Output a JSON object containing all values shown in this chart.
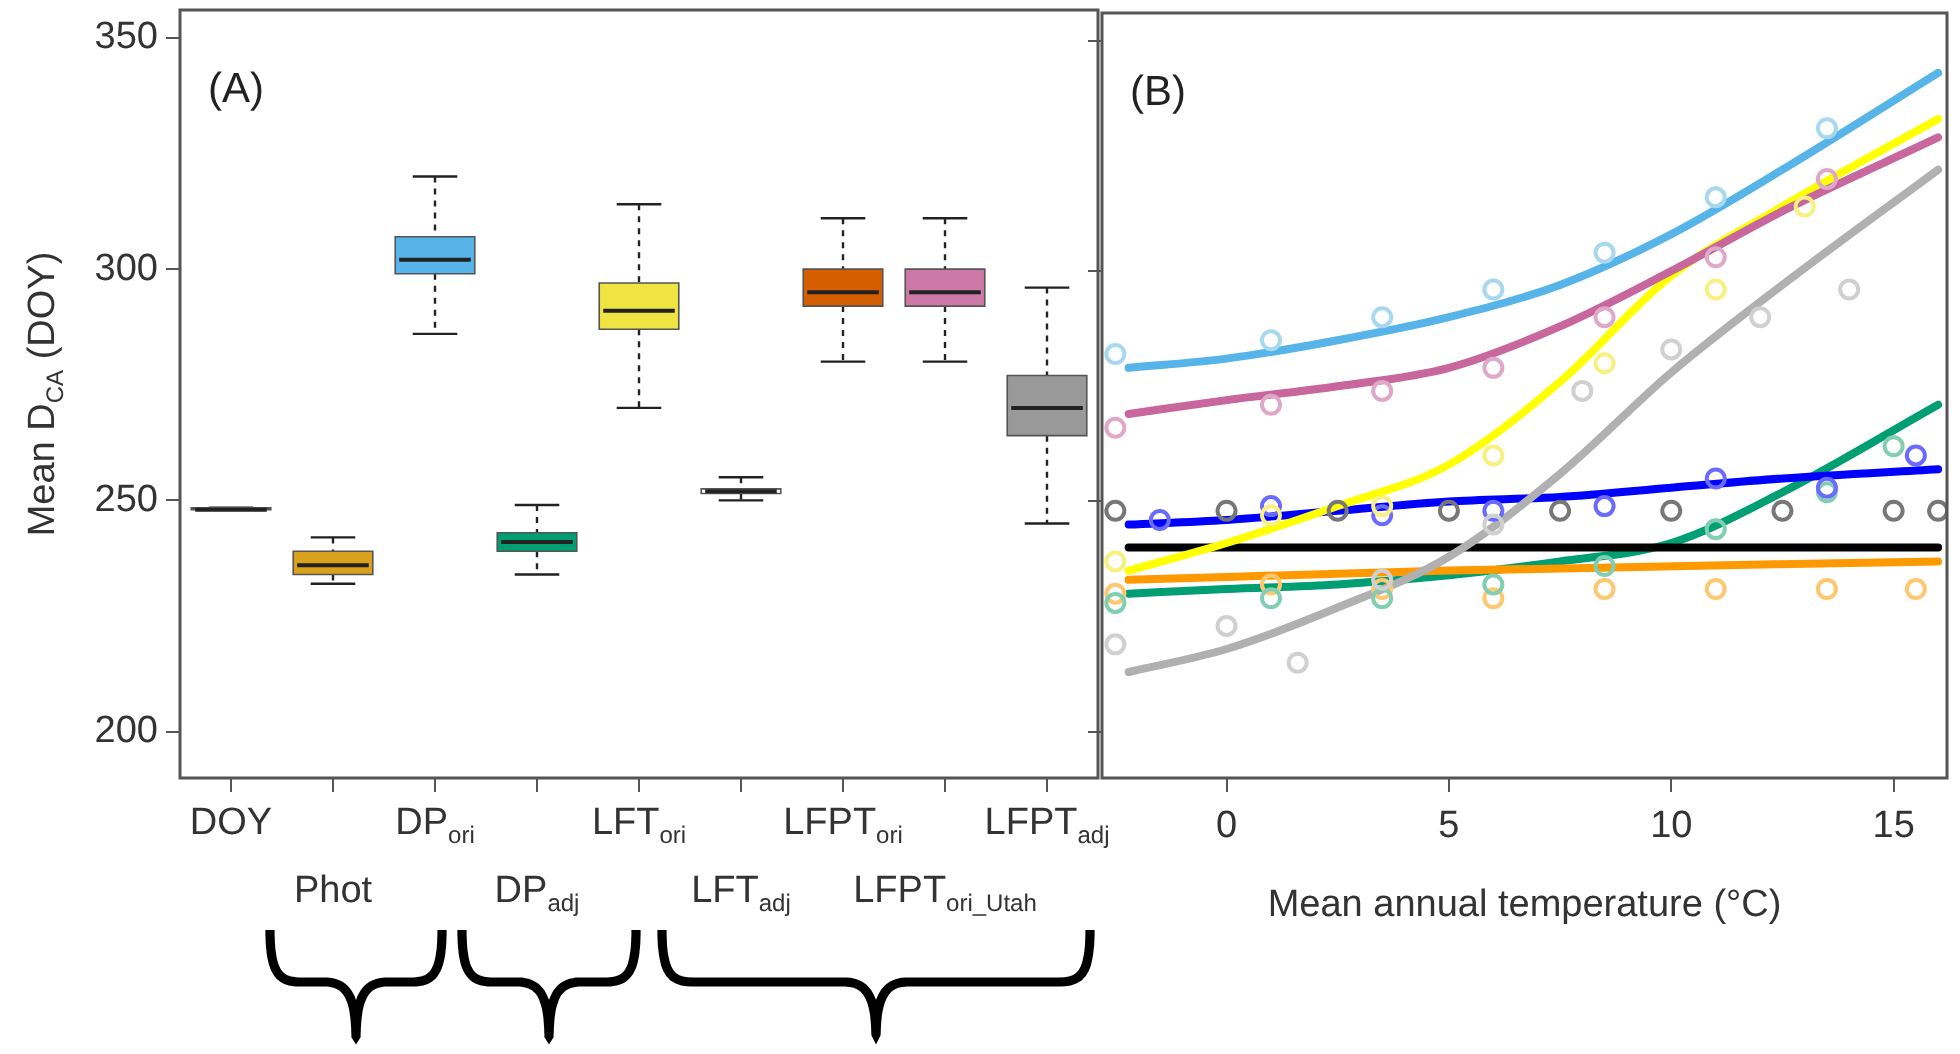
{
  "chart_data": [
    {
      "type": "box",
      "ylabel": "Mean D$_{CA}$ (DOY)",
      "annotations": [
        "(A)"
      ],
      "categories": [
        "DOY",
        "Phot",
        "DP$_{ori}$",
        "DP$_{adj}$",
        "LFT$_{ori}$",
        "LFT$_{adj}$",
        "LFPT$_{ori}$",
        "LFPT$_{ori_Utah}$",
        "LFPT$_{adj}$"
      ],
      "colors": [
        "#444444",
        "#d9a21c",
        "#56b4e9",
        "#009e73",
        "#f0e442",
        "#ffffff",
        "#d55e00",
        "#cc79a7",
        "#999999"
      ],
      "boxes": [
        {
          "low": 248,
          "q1": 248,
          "median": 248,
          "q3": 248.4,
          "high": 248.4
        },
        {
          "low": 232,
          "q1": 234,
          "median": 236,
          "q3": 239,
          "high": 242
        },
        {
          "low": 286,
          "q1": 299,
          "median": 302,
          "q3": 307,
          "high": 320
        },
        {
          "low": 234,
          "q1": 239,
          "median": 241,
          "q3": 243,
          "high": 249
        },
        {
          "low": 270,
          "q1": 287,
          "median": 291,
          "q3": 297,
          "high": 314
        },
        {
          "low": 250,
          "q1": 251.5,
          "median": 252,
          "q3": 252.5,
          "high": 255
        },
        {
          "low": 280,
          "q1": 292,
          "median": 295,
          "q3": 300,
          "high": 311
        },
        {
          "low": 280,
          "q1": 292,
          "median": 295,
          "q3": 300,
          "high": 311
        },
        {
          "low": 245,
          "q1": 264,
          "median": 270,
          "q3": 277,
          "high": 296
        }
      ],
      "ylim": [
        190,
        356
      ],
      "yticks": [
        200,
        250,
        300,
        350
      ],
      "grid": false,
      "legend": false
    },
    {
      "type": "scatter",
      "xlabel": "Mean annual temperature (°C)",
      "annotations": [
        "(B)"
      ],
      "marker": "circle",
      "xlim": [
        -2.8,
        16.2
      ],
      "xticks": [
        0,
        5,
        10,
        15
      ],
      "ylim": [
        190,
        356
      ],
      "yticks": [
        200,
        250,
        300,
        350
      ],
      "tick_labels": "x",
      "grid": false,
      "legend": false,
      "series": [
        {
          "color": "#a8d8f0",
          "x": [
            -2.5,
            1,
            3.5,
            6,
            8.5,
            11,
            13.5
          ],
          "values": [
            282,
            285,
            290,
            296,
            304,
            316,
            331
          ]
        },
        {
          "color": "#e0a8c8",
          "x": [
            -2.5,
            1,
            3.5,
            6,
            8.5,
            11,
            13.5
          ],
          "values": [
            266,
            271,
            274,
            279,
            290,
            303,
            320
          ]
        },
        {
          "color": "#f8f080",
          "x": [
            -2.5,
            1,
            3.5,
            6,
            8.5,
            11,
            13
          ],
          "values": [
            237,
            247,
            249,
            260,
            280,
            296,
            314
          ]
        },
        {
          "color": "#d0d0d0",
          "x": [
            -2.5,
            0,
            1.6,
            3.5,
            6,
            8,
            10,
            12,
            14
          ],
          "values": [
            219,
            223,
            215,
            233,
            245,
            274,
            283,
            290,
            296
          ]
        },
        {
          "color": "#6a6aff",
          "x": [
            -1.5,
            1,
            3.5,
            6,
            8.5,
            11,
            13.5,
            15.5
          ],
          "values": [
            246,
            249,
            247,
            248,
            249,
            255,
            253,
            260
          ]
        },
        {
          "color": "#777777",
          "x": [
            -2.5,
            0,
            2.5,
            5,
            7.5,
            10,
            12.5,
            15,
            16
          ],
          "values": [
            248,
            248,
            248,
            248,
            248,
            248,
            248,
            248,
            248
          ]
        },
        {
          "color": "#7fcfb0",
          "x": [
            -2.5,
            1,
            3.5,
            6,
            8.5,
            11,
            13.5,
            15
          ],
          "values": [
            228,
            229,
            229,
            232,
            236,
            244,
            252,
            262
          ]
        },
        {
          "color": "#ffc870",
          "x": [
            -2.5,
            1,
            3.5,
            6,
            8.5,
            11,
            13.5,
            15.5
          ],
          "values": [
            230,
            232,
            231,
            229,
            231,
            231,
            231,
            231
          ]
        },
        {
          "type": "line",
          "marker": "none",
          "color": "#56b4e9",
          "x": [
            -2.2,
            0,
            2.5,
            5,
            7.5,
            10,
            12.5,
            16
          ],
          "values": [
            279,
            281,
            285,
            290,
            297,
            308,
            322,
            343
          ]
        },
        {
          "type": "line",
          "marker": "none",
          "color": "#c8669e",
          "x": [
            -2.2,
            0,
            2.5,
            5,
            7.5,
            10,
            12.5,
            16
          ],
          "values": [
            269,
            272,
            275,
            279,
            288,
            300,
            313,
            329
          ]
        },
        {
          "type": "line",
          "marker": "none",
          "color": "#ffff00",
          "x": [
            -2.2,
            0,
            2.5,
            5,
            7.5,
            10,
            12.5,
            16
          ],
          "values": [
            235,
            241,
            249,
            258,
            276,
            299,
            314,
            333
          ]
        },
        {
          "type": "line",
          "marker": "none",
          "color": "#b0b0b0",
          "x": [
            -2.2,
            0,
            2.5,
            5,
            7.5,
            10,
            12.5,
            16
          ],
          "values": [
            213,
            218,
            227,
            238,
            256,
            278,
            297,
            322
          ]
        },
        {
          "type": "line",
          "marker": "none",
          "color": "#0000ff",
          "x": [
            -2.2,
            0,
            2.5,
            5,
            7.5,
            10,
            12.5,
            16
          ],
          "values": [
            245,
            246,
            248,
            250,
            251,
            253,
            255,
            257
          ]
        },
        {
          "type": "line",
          "marker": "none",
          "color": "#000000",
          "x": [
            -2.2,
            16
          ],
          "values": [
            240,
            240
          ]
        },
        {
          "type": "line",
          "marker": "none",
          "color": "#ff9900",
          "x": [
            -2.2,
            5,
            16
          ],
          "values": [
            233,
            235,
            237
          ]
        },
        {
          "type": "line",
          "marker": "none",
          "color": "#009e73",
          "x": [
            -2.2,
            0,
            2.5,
            5,
            7.5,
            10,
            12.5,
            16
          ],
          "values": [
            230,
            231,
            232,
            234,
            237,
            241,
            252,
            271
          ]
        }
      ]
    }
  ]
}
